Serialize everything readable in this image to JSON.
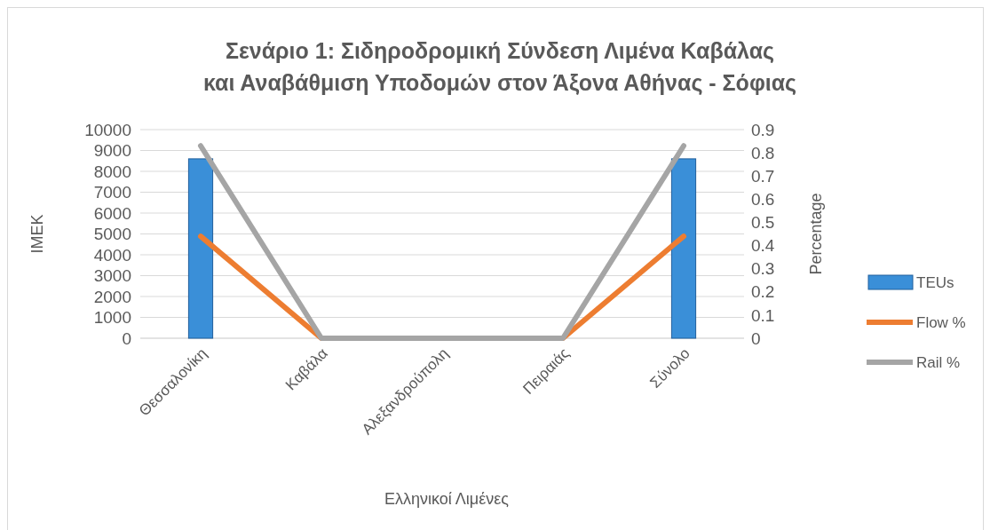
{
  "chart_data": {
    "type": "bar",
    "title": "Σενάριο 1: Σιδηροδρομική Σύνδεση Λιμένα Καβάλας και Αναβάθμιση Υποδομών στον Άξονα Αθήνας - Σόφιας",
    "xlabel": "Ελληνικοί Λιμένες",
    "ylabel": "ΙΜΕΚ",
    "y2label": "Percentage",
    "categories": [
      "Θεσσαλονίκη",
      "Καβάλα",
      "Αλεξανδρούπολη",
      "Πειραιάς",
      "Σύνολο"
    ],
    "series": [
      {
        "name": "TEUs",
        "color": "#3a8fd8",
        "values": [
          8600,
          0,
          0,
          0,
          8600
        ]
      },
      {
        "name": "Flow %",
        "type": "line",
        "axis": "y2",
        "color": "#ed7d31",
        "values": [
          0.44,
          0,
          0,
          0,
          0.44
        ]
      },
      {
        "name": "Rail %",
        "type": "line",
        "axis": "y2",
        "color": "#a5a5a5",
        "values": [
          0.83,
          0,
          0,
          0,
          0.83
        ]
      }
    ],
    "ylim": [
      0,
      10000
    ],
    "yticks": [
      0,
      1000,
      2000,
      3000,
      4000,
      5000,
      6000,
      7000,
      8000,
      9000,
      10000
    ],
    "y2lim": [
      0,
      0.9
    ],
    "y2ticks": [
      0,
      0.1,
      0.2,
      0.3,
      0.4,
      0.5,
      0.6,
      0.7,
      0.8,
      0.9
    ],
    "grid": "y",
    "legend": "right"
  }
}
